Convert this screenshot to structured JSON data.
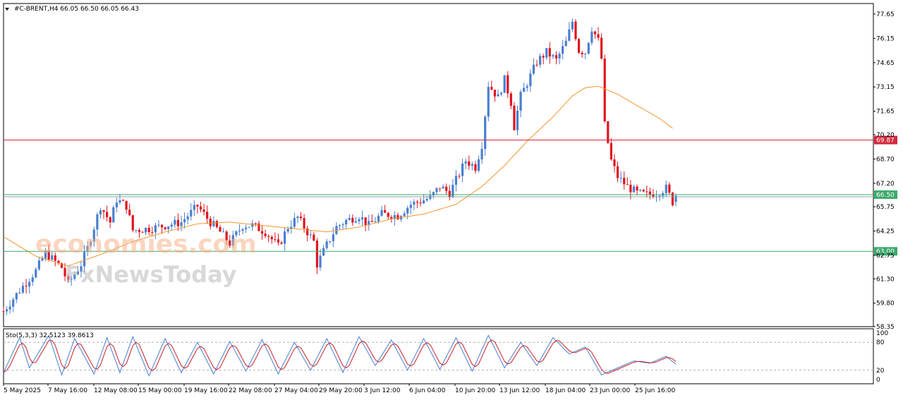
{
  "header": {
    "symbol_line": "#C-BRENT,H4  66.05 66.50 66.05 66.43",
    "stoch_line": "Sto(5,3,3) 32.5123 39.8613"
  },
  "watermark": {
    "brand_top": "economies.com",
    "brand_bottom": "FxNewsToday"
  },
  "chart_data": [
    {
      "type": "candlestick",
      "title": "#C-BRENT,H4",
      "ohlc_last": {
        "open": 66.05,
        "high": 66.5,
        "low": 66.05,
        "close": 66.43
      },
      "ylim": [
        58.35,
        78.3
      ],
      "y_ticks": [
        58.35,
        59.8,
        61.3,
        62.75,
        64.25,
        65.75,
        67.2,
        68.7,
        70.2,
        71.65,
        73.15,
        74.65,
        76.15,
        77.65
      ],
      "x_ticks": [
        "5 May 2025",
        "7 May 16:00",
        "12 May 08:00",
        "15 May 00:00",
        "19 May 16:00",
        "22 May 08:00",
        "27 May 04:00",
        "29 May 20:00",
        "3 Jun 12:00",
        "6 Jun 04:00",
        "10 Jun 20:00",
        "13 Jun 12:00",
        "18 Jun 04:00",
        "23 Jun 00:00",
        "25 Jun 16:00"
      ],
      "horizontal_levels": [
        {
          "value": 69.87,
          "label": "69.87",
          "color": "#d2283c"
        },
        {
          "value": 66.5,
          "label": "66.50",
          "color": "#3ca96a"
        },
        {
          "value": 63.0,
          "label": "63.00",
          "color": "#3ca96a"
        }
      ],
      "colors": {
        "bull": "#4a7fd0",
        "bear": "#e0141e",
        "ma": "#f0962a"
      },
      "close_path": [
        [
          0,
          59.3
        ],
        [
          5,
          60.6
        ],
        [
          10,
          61.8
        ],
        [
          13,
          62.9
        ],
        [
          18,
          62.0
        ],
        [
          20,
          61.0
        ],
        [
          24,
          62.2
        ],
        [
          26,
          63.2
        ],
        [
          30,
          65.8
        ],
        [
          33,
          64.8
        ],
        [
          35,
          66.2
        ],
        [
          38,
          65.8
        ],
        [
          40,
          64.3
        ],
        [
          45,
          64.4
        ],
        [
          50,
          64.6
        ],
        [
          55,
          64.8
        ],
        [
          60,
          65.8
        ],
        [
          64,
          64.8
        ],
        [
          67,
          64.2
        ],
        [
          70,
          63.5
        ],
        [
          74,
          64.6
        ],
        [
          77,
          64.6
        ],
        [
          81,
          64.2
        ],
        [
          85,
          63.3
        ],
        [
          88,
          64.5
        ],
        [
          91,
          65.1
        ],
        [
          96,
          63.6
        ],
        [
          97,
          62.2
        ],
        [
          100,
          63.4
        ],
        [
          103,
          64.5
        ],
        [
          106,
          64.9
        ],
        [
          110,
          65.2
        ],
        [
          113,
          64.6
        ],
        [
          117,
          65.3
        ],
        [
          122,
          65.2
        ],
        [
          126,
          65.9
        ],
        [
          132,
          66.3
        ],
        [
          135,
          67.0
        ],
        [
          138,
          66.6
        ],
        [
          140,
          67.4
        ],
        [
          143,
          68.6
        ],
        [
          146,
          68.2
        ],
        [
          148,
          69.6
        ],
        [
          150,
          73.3
        ],
        [
          153,
          72.5
        ],
        [
          155,
          73.6
        ],
        [
          157,
          72.2
        ],
        [
          158,
          70.7
        ],
        [
          160,
          72.6
        ],
        [
          162,
          73.4
        ],
        [
          165,
          74.7
        ],
        [
          168,
          75.3
        ],
        [
          171,
          74.8
        ],
        [
          174,
          75.9
        ],
        [
          176,
          77.2
        ],
        [
          178,
          75.4
        ],
        [
          180,
          75.3
        ],
        [
          182,
          76.8
        ],
        [
          184,
          76.0
        ],
        [
          185,
          74.9
        ],
        [
          186,
          70.8
        ],
        [
          188,
          68.6
        ],
        [
          190,
          67.6
        ],
        [
          193,
          67.0
        ],
        [
          196,
          66.6
        ],
        [
          199,
          66.5
        ],
        [
          202,
          66.6
        ],
        [
          205,
          66.9
        ],
        [
          207,
          66.05
        ],
        [
          208,
          66.43
        ]
      ],
      "ma_path": [
        [
          0,
          63.9
        ],
        [
          10,
          62.7
        ],
        [
          20,
          62.1
        ],
        [
          30,
          62.8
        ],
        [
          40,
          63.6
        ],
        [
          50,
          64.2
        ],
        [
          60,
          64.7
        ],
        [
          70,
          64.8
        ],
        [
          80,
          64.6
        ],
        [
          90,
          64.4
        ],
        [
          100,
          64.2
        ],
        [
          110,
          64.5
        ],
        [
          120,
          65.0
        ],
        [
          130,
          65.3
        ],
        [
          140,
          65.9
        ],
        [
          148,
          67.0
        ],
        [
          155,
          68.3
        ],
        [
          162,
          69.8
        ],
        [
          170,
          71.3
        ],
        [
          176,
          72.6
        ],
        [
          180,
          73.1
        ],
        [
          184,
          73.2
        ],
        [
          190,
          72.7
        ],
        [
          196,
          72.0
        ],
        [
          203,
          71.2
        ],
        [
          207,
          70.6
        ]
      ]
    },
    {
      "type": "line",
      "title": "Sto(5,3,3)",
      "main_value": 32.5123,
      "signal_value": 39.8613,
      "ylim": [
        0,
        100
      ],
      "y_ticks": [
        100,
        80,
        20,
        0
      ],
      "levels": [
        80,
        20
      ],
      "colors": {
        "main": "#4a7fd0",
        "signal": "#c81e28"
      },
      "main_path": [
        [
          0,
          15
        ],
        [
          5,
          90
        ],
        [
          8,
          25
        ],
        [
          14,
          95
        ],
        [
          18,
          10
        ],
        [
          22,
          88
        ],
        [
          28,
          12
        ],
        [
          32,
          90
        ],
        [
          36,
          15
        ],
        [
          40,
          92
        ],
        [
          45,
          8
        ],
        [
          50,
          88
        ],
        [
          55,
          15
        ],
        [
          60,
          80
        ],
        [
          65,
          12
        ],
        [
          70,
          82
        ],
        [
          75,
          18
        ],
        [
          80,
          86
        ],
        [
          85,
          12
        ],
        [
          90,
          80
        ],
        [
          95,
          20
        ],
        [
          100,
          88
        ],
        [
          105,
          15
        ],
        [
          110,
          92
        ],
        [
          115,
          30
        ],
        [
          120,
          85
        ],
        [
          125,
          20
        ],
        [
          130,
          88
        ],
        [
          135,
          22
        ],
        [
          140,
          90
        ],
        [
          145,
          18
        ],
        [
          150,
          95
        ],
        [
          155,
          25
        ],
        [
          160,
          80
        ],
        [
          165,
          30
        ],
        [
          170,
          90
        ],
        [
          175,
          55
        ],
        [
          180,
          70
        ],
        [
          185,
          10
        ],
        [
          190,
          25
        ],
        [
          195,
          40
        ],
        [
          200,
          35
        ],
        [
          205,
          50
        ],
        [
          208,
          33
        ]
      ]
    }
  ]
}
